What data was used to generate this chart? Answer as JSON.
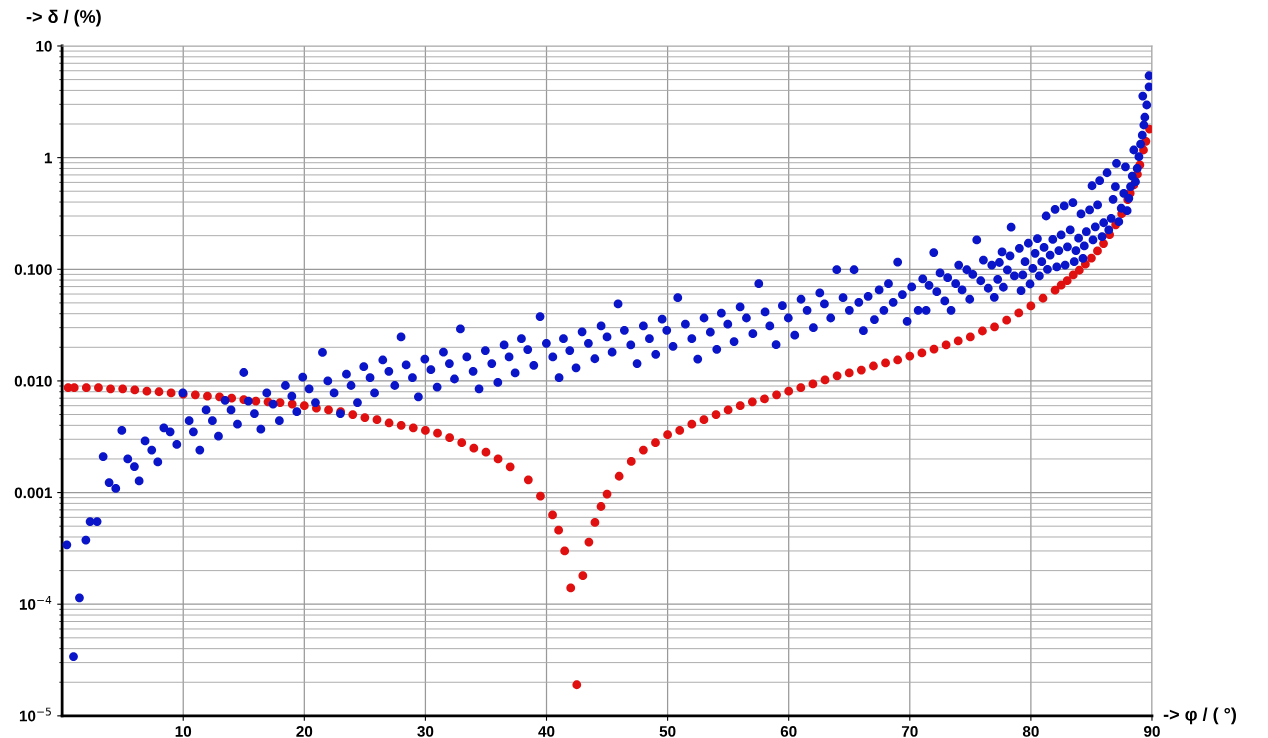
{
  "chart_data": {
    "type": "scatter",
    "xlabel": "-> φ / ( °)",
    "ylabel": "-> δ / (%)",
    "log": "y",
    "grid": true,
    "marker": "circle",
    "xlim": [
      0,
      90
    ],
    "xticks": [
      10,
      20,
      30,
      40,
      50,
      60,
      70,
      80,
      90
    ],
    "ylim": [
      1e-05,
      10
    ],
    "yticks": [
      {
        "value": 1e-05,
        "label": "10$^{−5}$"
      },
      {
        "value": 0.0001,
        "label": "10$^{−4}$"
      },
      {
        "value": 0.001,
        "label": "0.001"
      },
      {
        "value": 0.01,
        "label": "0.010"
      },
      {
        "value": 0.1,
        "label": "0.100"
      },
      {
        "value": 1,
        "label": "1"
      },
      {
        "value": 10,
        "label": "10"
      }
    ],
    "series": [
      {
        "color": "#e01010",
        "x": [
          0.5,
          1,
          2,
          3,
          4,
          5,
          6,
          7,
          8,
          9,
          10,
          11,
          12,
          13,
          14,
          15,
          16,
          17,
          18,
          19,
          20,
          21,
          22,
          23,
          24,
          25,
          26,
          27,
          28,
          29,
          30,
          31,
          32,
          33,
          34,
          35,
          36,
          37,
          38.5,
          39.5,
          40.5,
          41,
          41.5,
          42,
          42.5,
          43,
          43.5,
          44,
          44.5,
          45,
          46,
          47,
          48,
          49,
          50,
          51,
          52,
          53,
          54,
          55,
          56,
          57,
          58,
          59,
          60,
          61,
          62,
          63,
          64,
          65,
          66,
          67,
          68,
          69,
          70,
          71,
          72,
          73,
          74,
          75,
          76,
          77,
          78,
          79,
          80,
          81,
          82,
          82.5,
          83,
          83.5,
          84,
          84.5,
          85,
          85.5,
          86,
          86.5,
          87,
          87.5,
          88,
          88.2,
          88.5,
          88.8,
          89,
          89.3,
          89.5,
          89.8
        ],
        "values": [
          0.0087,
          0.0087,
          0.0087,
          0.0087,
          0.0085,
          0.0085,
          0.0083,
          0.0081,
          0.008,
          0.0078,
          0.0076,
          0.0075,
          0.0073,
          0.0072,
          0.007,
          0.0068,
          0.0066,
          0.0065,
          0.0064,
          0.0062,
          0.006,
          0.0057,
          0.0055,
          0.0053,
          0.005,
          0.0047,
          0.0045,
          0.0042,
          0.004,
          0.0038,
          0.0036,
          0.0034,
          0.0031,
          0.0028,
          0.0025,
          0.0023,
          0.002,
          0.0017,
          0.0013,
          0.00093,
          0.00063,
          0.00046,
          0.0003,
          0.00014,
          1.9e-05,
          0.00018,
          0.00036,
          0.00054,
          0.00075,
          0.00097,
          0.0014,
          0.0019,
          0.0024,
          0.0028,
          0.0033,
          0.0036,
          0.0041,
          0.0045,
          0.005,
          0.0055,
          0.006,
          0.0065,
          0.0069,
          0.0075,
          0.0081,
          0.0087,
          0.0094,
          0.0102,
          0.0111,
          0.0118,
          0.0125,
          0.0136,
          0.0145,
          0.0154,
          0.0167,
          0.0178,
          0.0193,
          0.021,
          0.0228,
          0.0248,
          0.028,
          0.0305,
          0.035,
          0.0406,
          0.047,
          0.055,
          0.065,
          0.072,
          0.079,
          0.089,
          0.098,
          0.111,
          0.126,
          0.146,
          0.17,
          0.204,
          0.25,
          0.315,
          0.42,
          0.48,
          0.57,
          0.71,
          0.86,
          1.17,
          1.4,
          1.8
        ]
      },
      {
        "color": "#0a14c8",
        "x": [
          0.39,
          0.94,
          1.43,
          1.96,
          2.31,
          2.89,
          3.39,
          3.88,
          4.43,
          4.93,
          5.42,
          5.97,
          6.36,
          6.85,
          7.4,
          7.9,
          8.4,
          8.92,
          9.47,
          9.97,
          10.49,
          10.84,
          11.37,
          11.89,
          12.41,
          12.91,
          13.46,
          13.95,
          14.48,
          15.0,
          15.38,
          15.88,
          16.41,
          16.9,
          17.42,
          17.94,
          18.44,
          18.97,
          19.38,
          19.87,
          20.4,
          20.92,
          21.5,
          21.94,
          22.46,
          22.98,
          23.48,
          23.86,
          24.39,
          24.91,
          25.43,
          25.8,
          26.48,
          26.98,
          27.47,
          27.99,
          28.41,
          28.93,
          29.42,
          29.95,
          30.45,
          30.97,
          31.49,
          31.98,
          32.4,
          32.89,
          33.42,
          33.94,
          34.43,
          34.95,
          35.48,
          35.98,
          36.5,
          36.91,
          37.41,
          37.93,
          38.45,
          38.95,
          39.47,
          39.99,
          40.52,
          41.04,
          41.4,
          41.92,
          42.44,
          42.94,
          43.46,
          43.99,
          44.51,
          45.0,
          45.42,
          45.91,
          46.43,
          46.96,
          47.48,
          48.0,
          48.5,
          49.02,
          49.55,
          49.93,
          50.45,
          50.84,
          51.47,
          52.0,
          52.49,
          53.01,
          53.53,
          54.06,
          54.44,
          54.97,
          55.49,
          55.99,
          56.51,
          57.04,
          57.53,
          58.05,
          58.44,
          58.96,
          59.48,
          59.97,
          60.5,
          61.02,
          61.52,
          62.04,
          62.57,
          62.95,
          63.47,
          63.97,
          64.49,
          65.01,
          65.4,
          65.79,
          66.17,
          66.56,
          67.08,
          67.47,
          67.86,
          68.24,
          68.63,
          69.0,
          69.39,
          69.78,
          70.16,
          70.69,
          71.07,
          71.35,
          71.59,
          71.98,
          72.23,
          72.5,
          72.89,
          73.13,
          73.41,
          73.79,
          74.04,
          74.32,
          74.71,
          74.95,
          75.2,
          75.53,
          75.86,
          76.08,
          76.48,
          76.77,
          76.98,
          77.26,
          77.4,
          77.62,
          77.73,
          78.06,
          78.28,
          78.37,
          78.64,
          79.05,
          79.19,
          79.33,
          79.52,
          79.79,
          79.93,
          80.16,
          80.35,
          80.54,
          80.7,
          80.9,
          81.09,
          81.26,
          81.37,
          81.59,
          81.81,
          82.0,
          82.14,
          82.31,
          82.5,
          82.75,
          82.83,
          83.02,
          83.25,
          83.47,
          83.58,
          83.72,
          83.94,
          84.14,
          84.3,
          84.41,
          84.58,
          84.85,
          85.05,
          85.13,
          85.32,
          85.51,
          85.68,
          85.88,
          86.01,
          86.29,
          86.43,
          86.63,
          86.79,
          86.98,
          87.07,
          87.26,
          87.46,
          87.67,
          87.81,
          87.95,
          88.09,
          88.23,
          88.37,
          88.5,
          88.64,
          88.78,
          88.92,
          89.06,
          89.2,
          89.24,
          89.33,
          89.41,
          89.57,
          89.76,
          89.76
        ],
        "values": [
          0.00034,
          3.4e-05,
          0.000114,
          0.000375,
          0.00055,
          0.00055,
          0.0021,
          0.00123,
          0.00109,
          0.0036,
          0.002,
          0.00171,
          0.00127,
          0.0029,
          0.0024,
          0.00188,
          0.0038,
          0.0035,
          0.0027,
          0.0078,
          0.0044,
          0.0035,
          0.0024,
          0.0055,
          0.0044,
          0.0032,
          0.0067,
          0.0055,
          0.0041,
          0.0119,
          0.0066,
          0.0051,
          0.0037,
          0.0078,
          0.0062,
          0.0044,
          0.0091,
          0.0073,
          0.0053,
          0.0108,
          0.0085,
          0.0064,
          0.018,
          0.01,
          0.0078,
          0.0051,
          0.0115,
          0.0091,
          0.0064,
          0.0134,
          0.0107,
          0.0078,
          0.0154,
          0.0122,
          0.0091,
          0.0248,
          0.0139,
          0.0107,
          0.0072,
          0.0157,
          0.0126,
          0.0088,
          0.0181,
          0.0143,
          0.0104,
          0.0292,
          0.0164,
          0.0122,
          0.0085,
          0.0187,
          0.0143,
          0.0097,
          0.021,
          0.0164,
          0.0118,
          0.0239,
          0.0191,
          0.0138,
          0.0377,
          0.0217,
          0.0164,
          0.0107,
          0.0239,
          0.0187,
          0.0131,
          0.0275,
          0.0217,
          0.0158,
          0.0311,
          0.0248,
          0.0181,
          0.0489,
          0.0284,
          0.021,
          0.0143,
          0.0311,
          0.0239,
          0.0173,
          0.0357,
          0.0284,
          0.0204,
          0.0557,
          0.0322,
          0.0239,
          0.0157,
          0.0366,
          0.0273,
          0.0192,
          0.0404,
          0.0322,
          0.0225,
          0.046,
          0.0366,
          0.0265,
          0.0743,
          0.0415,
          0.0311,
          0.0211,
          0.0472,
          0.0366,
          0.0257,
          0.0539,
          0.0429,
          0.03,
          0.0614,
          0.0489,
          0.0366,
          0.0991,
          0.0557,
          0.0429,
          0.099,
          0.0506,
          0.0282,
          0.0573,
          0.0354,
          0.0653,
          0.0429,
          0.0743,
          0.0506,
          0.116,
          0.0593,
          0.0342,
          0.0695,
          0.0429,
          0.0819,
          0.0429,
          0.0718,
          0.141,
          0.063,
          0.0927,
          0.052,
          0.0841,
          0.0429,
          0.0743,
          0.109,
          0.0653,
          0.099,
          0.0539,
          0.09,
          0.183,
          0.0789,
          0.121,
          0.0676,
          0.109,
          0.0561,
          0.0813,
          0.115,
          0.143,
          0.069,
          0.0986,
          0.132,
          0.238,
          0.0871,
          0.154,
          0.0643,
          0.089,
          0.117,
          0.171,
          0.0738,
          0.102,
          0.139,
          0.188,
          0.0871,
          0.117,
          0.157,
          0.3,
          0.1,
          0.134,
          0.185,
          0.344,
          0.105,
          0.147,
          0.203,
          0.369,
          0.109,
          0.159,
          0.225,
          0.395,
          0.117,
          0.147,
          0.19,
          0.313,
          0.125,
          0.162,
          0.217,
          0.34,
          0.56,
          0.183,
          0.24,
          0.377,
          0.621,
          0.196,
          0.261,
          0.732,
          0.225,
          0.286,
          0.423,
          0.549,
          0.889,
          0.267,
          0.352,
          0.479,
          0.828,
          0.335,
          0.432,
          0.549,
          0.684,
          1.17,
          0.608,
          0.8,
          1.02,
          1.32,
          1.59,
          3.56,
          1.96,
          2.3,
          2.96,
          4.31,
          5.41
        ]
      }
    ]
  }
}
